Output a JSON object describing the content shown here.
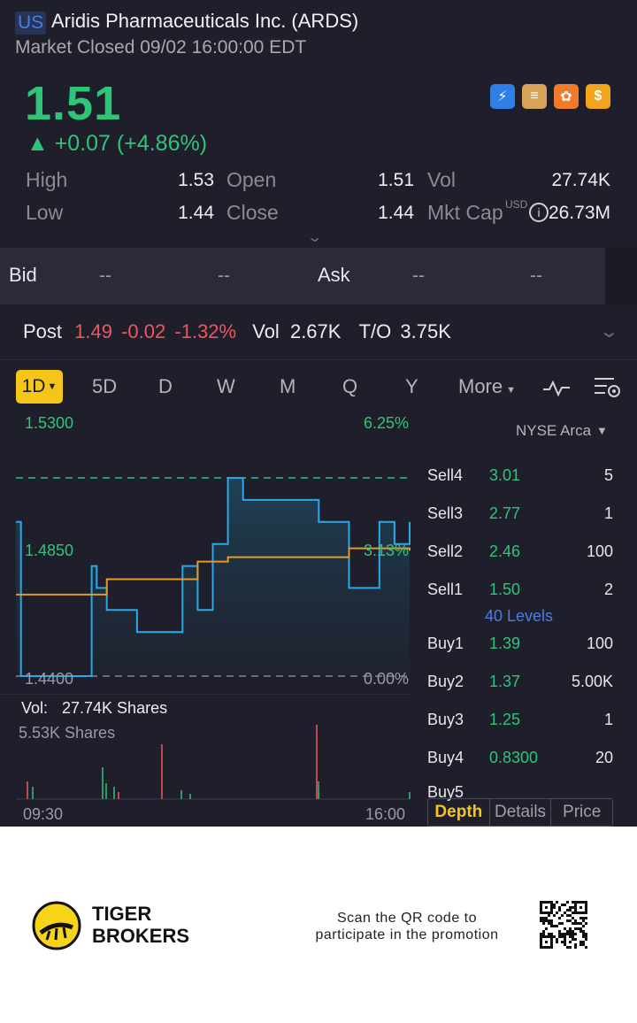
{
  "header": {
    "market_badge": "US",
    "stock_name": "Aridis Pharmaceuticals Inc. (ARDS)",
    "market_status": "Market Closed 09/02 16:00:00 EDT",
    "price": "1.51",
    "change": "▲ +0.07 (+4.86%)"
  },
  "stats": {
    "high_label": "High",
    "high": "1.53",
    "open_label": "Open",
    "open": "1.51",
    "vol_label": "Vol",
    "vol": "27.74K",
    "low_label": "Low",
    "low": "1.44",
    "close_label": "Close",
    "close": "1.44",
    "mktcap_label": "Mkt Cap",
    "mktcap_unit": "USD",
    "mktcap": "26.73M"
  },
  "bidask": {
    "bid_label": "Bid",
    "bid_price": "--",
    "bid_size": "--",
    "ask_label": "Ask",
    "ask_price": "--",
    "ask_size": "--"
  },
  "post": {
    "label": "Post",
    "price": "1.49",
    "change": "-0.02",
    "pct": "-1.32%",
    "vol_label": "Vol",
    "vol": "2.67K",
    "to_label": "T/O",
    "to": "3.75K"
  },
  "tabs": [
    "1D",
    "5D",
    "D",
    "W",
    "M",
    "Q",
    "Y",
    "More"
  ],
  "chart_data": {
    "type": "line",
    "title": "",
    "y_axis_labels": [
      "1.5300",
      "1.4850",
      "1.4400"
    ],
    "pct_labels": [
      "6.25%",
      "3.13%",
      "0.00%"
    ],
    "x_labels": [
      "09:30",
      "16:00"
    ],
    "ylim": [
      1.44,
      1.53
    ],
    "prev_close": 1.44,
    "series": [
      {
        "x": [
          "09:30",
          "09:35",
          "10:00",
          "10:30",
          "10:45",
          "10:50",
          "11:00",
          "11:30",
          "12:00",
          "12:15",
          "12:30",
          "12:45",
          "13:00",
          "13:15",
          "13:30",
          "14:00",
          "14:30",
          "15:00",
          "15:30",
          "15:45",
          "16:00"
        ],
        "y": [
          1.51,
          1.44,
          1.44,
          1.44,
          1.49,
          1.48,
          1.47,
          1.46,
          1.46,
          1.49,
          1.47,
          1.5,
          1.53,
          1.52,
          1.52,
          1.52,
          1.51,
          1.48,
          1.51,
          1.5,
          1.51
        ],
        "color": "#29a8ea"
      },
      {
        "x": [
          "09:30",
          "10:00",
          "10:30",
          "11:00",
          "12:00",
          "12:30",
          "13:00",
          "14:00",
          "15:00",
          "16:00"
        ],
        "y": [
          1.477,
          1.477,
          1.477,
          1.484,
          1.484,
          1.492,
          1.494,
          1.494,
          1.498,
          1.497
        ],
        "color": "#e39a27"
      }
    ],
    "volume_label": "Vol:",
    "volume_total": "27.74K Shares",
    "volume_max": "5.53K Shares"
  },
  "orderbook": {
    "exchange": "NYSE Arca",
    "sells": [
      {
        "label": "Sell4",
        "price": "3.01",
        "qty": "5"
      },
      {
        "label": "Sell3",
        "price": "2.77",
        "qty": "1"
      },
      {
        "label": "Sell2",
        "price": "2.46",
        "qty": "100"
      },
      {
        "label": "Sell1",
        "price": "1.50",
        "qty": "2"
      }
    ],
    "levels_link": "40 Levels",
    "buys": [
      {
        "label": "Buy1",
        "price": "1.39",
        "qty": "100"
      },
      {
        "label": "Buy2",
        "price": "1.37",
        "qty": "5.00K"
      },
      {
        "label": "Buy3",
        "price": "1.25",
        "qty": "1"
      },
      {
        "label": "Buy4",
        "price": "0.8300",
        "qty": "20"
      },
      {
        "label": "Buy5",
        "price": "",
        "qty": ""
      }
    ],
    "tabs": [
      "Depth",
      "Details",
      "Price"
    ]
  },
  "promo": {
    "brand_line1": "TIGER",
    "brand_line2": "BROKERS",
    "text_line1": "Scan the QR code to",
    "text_line2": "participate in the promotion"
  }
}
